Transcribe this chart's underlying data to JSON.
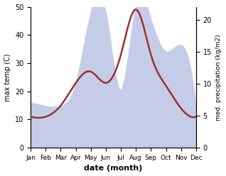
{
  "months": [
    "Jan",
    "Feb",
    "Mar",
    "Apr",
    "May",
    "Jun",
    "Jul",
    "Aug",
    "Sep",
    "Oct",
    "Nov",
    "Dec"
  ],
  "temp_max": [
    11,
    11,
    15,
    23,
    27,
    23,
    33,
    49,
    33,
    22,
    14,
    11
  ],
  "precipitation": [
    7,
    6.5,
    6.5,
    10,
    21,
    21,
    9,
    22,
    20,
    15,
    16,
    6
  ],
  "temp_color": "#993333",
  "precip_fill_color": "#c5cce8",
  "xlabel": "date (month)",
  "ylabel_left": "max temp (C)",
  "ylabel_right": "med. precipitation (kg/m2)",
  "ylim_left": [
    0,
    50
  ],
  "ylim_right": [
    0,
    22
  ],
  "yticks_left": [
    0,
    10,
    20,
    30,
    40,
    50
  ],
  "yticks_right": [
    0,
    5,
    10,
    15,
    20
  ],
  "bg_color": "#ffffff",
  "line_width": 1.8
}
